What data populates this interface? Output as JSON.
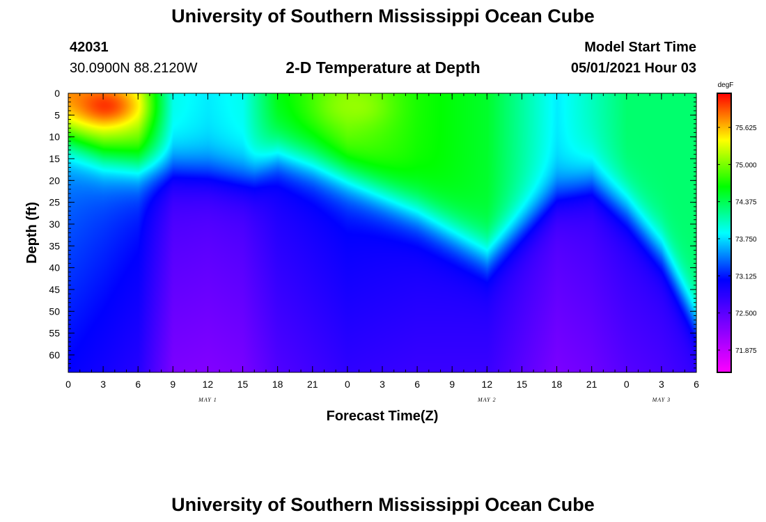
{
  "header": {
    "title": "University of Southern Mississippi Ocean Cube",
    "station_id": "42031",
    "location": "30.0900N  88.2120W",
    "subtitle": "2-D Temperature at Depth",
    "start_label": "Model Start Time",
    "start_value": "05/01/2021 Hour 03"
  },
  "footer": {
    "title": "University of Southern Mississippi Ocean Cube"
  },
  "colors": {
    "ramp": [
      "#ff00ff",
      "#8000ff",
      "#0000ff",
      "#00ffff",
      "#00ff00",
      "#ffff00",
      "#ff0000"
    ]
  },
  "chart_data": {
    "type": "heatmap",
    "xlabel": "Forecast Time(Z)",
    "ylabel": "Depth (ft)",
    "xlim": [
      0,
      54
    ],
    "ylim": [
      0,
      64
    ],
    "x_tick_values": [
      0,
      3,
      6,
      9,
      12,
      15,
      18,
      21,
      24,
      27,
      30,
      33,
      36,
      39,
      42,
      45,
      48,
      51,
      54
    ],
    "x_tick_labels": [
      "0",
      "3",
      "6",
      "9",
      "12",
      "15",
      "18",
      "21",
      "0",
      "3",
      "6",
      "9",
      "12",
      "15",
      "18",
      "21",
      "0",
      "3",
      "6"
    ],
    "date_labels": [
      {
        "x": 12,
        "text": "MAY 1"
      },
      {
        "x": 36,
        "text": "MAY 2"
      },
      {
        "x": 51,
        "text": "MAY 3"
      }
    ],
    "y_tick_values": [
      0,
      5,
      10,
      15,
      20,
      25,
      30,
      35,
      40,
      45,
      50,
      55,
      60
    ],
    "y_tick_labels": [
      "0",
      "5",
      "10",
      "15",
      "20",
      "25",
      "30",
      "35",
      "40",
      "45",
      "50",
      "55",
      "60"
    ],
    "colorbar": {
      "unit": "degF",
      "range": [
        71.5,
        76.2
      ],
      "tick_values": [
        71.875,
        72.5,
        73.125,
        73.75,
        74.375,
        75.0,
        75.625
      ],
      "tick_labels": [
        "71.875",
        "72.500",
        "73.125",
        "73.750",
        "74.375",
        "75.000",
        "75.625"
      ]
    },
    "thermocline_depth": {
      "x": [
        0,
        3,
        6,
        9,
        12,
        15,
        16,
        18,
        21,
        24,
        27,
        30,
        33,
        36,
        39,
        42,
        45,
        48,
        51,
        54
      ],
      "depth": [
        10,
        14,
        16,
        17,
        18,
        19,
        18,
        14,
        16,
        19,
        23,
        27,
        32,
        37,
        30,
        23,
        20,
        26,
        36,
        52
      ]
    },
    "warm_anomalies": [
      {
        "x": 3.0,
        "depth": 3,
        "temp": 76.1
      },
      {
        "x": 24.5,
        "depth": 3,
        "temp": 75.1
      }
    ],
    "surface_temp": {
      "x": [
        0,
        6,
        9,
        12,
        15,
        18,
        24,
        30,
        36,
        42,
        48,
        54
      ],
      "temp": [
        75.8,
        75.2,
        73.9,
        73.8,
        73.9,
        74.6,
        75.0,
        74.7,
        74.5,
        73.8,
        74.3,
        74.3
      ]
    },
    "deep_temp": 71.8
  }
}
